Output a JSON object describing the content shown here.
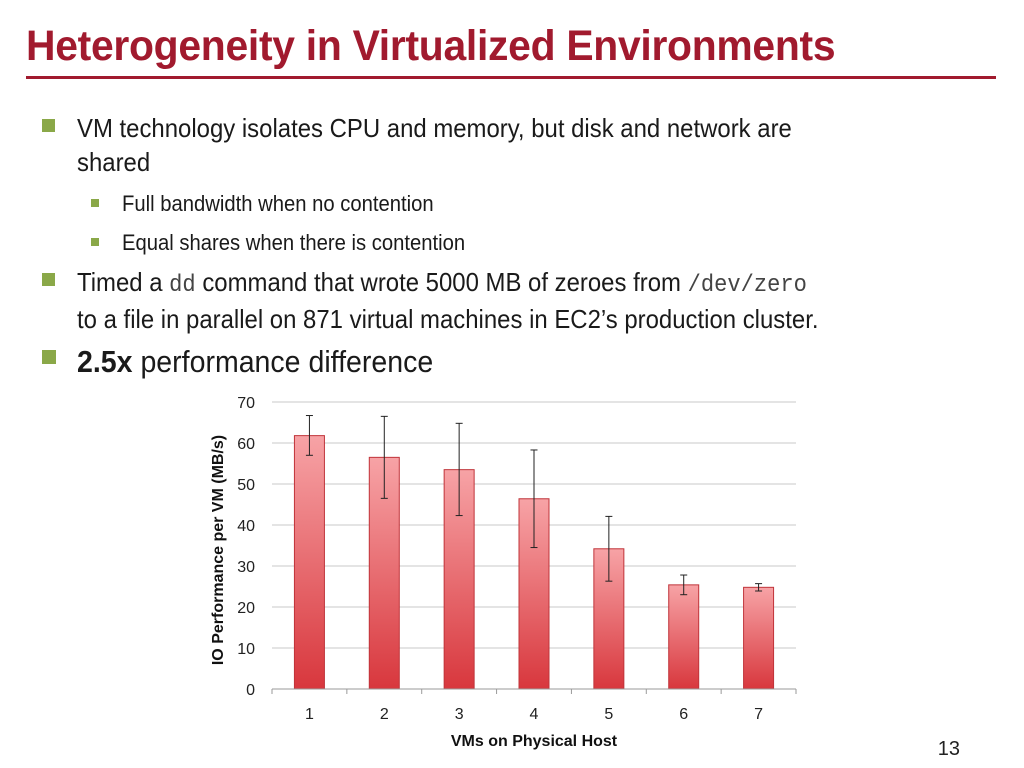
{
  "slide": {
    "title": "Heterogeneity in Virtualized Environments",
    "page_number": "13"
  },
  "bullets": {
    "b1": {
      "line1": "VM technology isolates CPU and memory, but disk and network are",
      "line2": "shared"
    },
    "sub1": "Full bandwidth when no contention",
    "sub2": "Equal shares when there is contention",
    "b2": {
      "pre": "Timed a ",
      "code1": "dd",
      "mid": " command that wrote 5000 MB of zeroes from ",
      "code2": "/dev/zero",
      "line2": "to a file in parallel on 871 virtual machines in EC2’s production cluster."
    },
    "b3": {
      "bold": "2.5x",
      "rest": " performance difference"
    }
  },
  "colors": {
    "title": "#a11a2e",
    "bullet": "#8aa848",
    "bar_top": "#f7a3a6",
    "bar_bottom": "#d8373d",
    "bar_border": "#c0343a"
  },
  "chart_data": {
    "type": "bar",
    "categories": [
      "1",
      "2",
      "3",
      "4",
      "5",
      "6",
      "7"
    ],
    "values": [
      61.8,
      56.5,
      53.5,
      46.4,
      34.2,
      25.4,
      24.8
    ],
    "error_low": [
      57.0,
      46.5,
      42.3,
      34.5,
      26.3,
      23.0,
      23.9
    ],
    "error_high": [
      66.7,
      66.5,
      64.8,
      58.3,
      42.1,
      27.8,
      25.7
    ],
    "xlabel": "VMs on Physical Host",
    "ylabel": "IO Performance per VM (MB/s)",
    "ylim": [
      0,
      70
    ],
    "yticks": [
      "0",
      "10",
      "20",
      "30",
      "40",
      "50",
      "60",
      "70"
    ],
    "grid": true,
    "legend": "none"
  }
}
